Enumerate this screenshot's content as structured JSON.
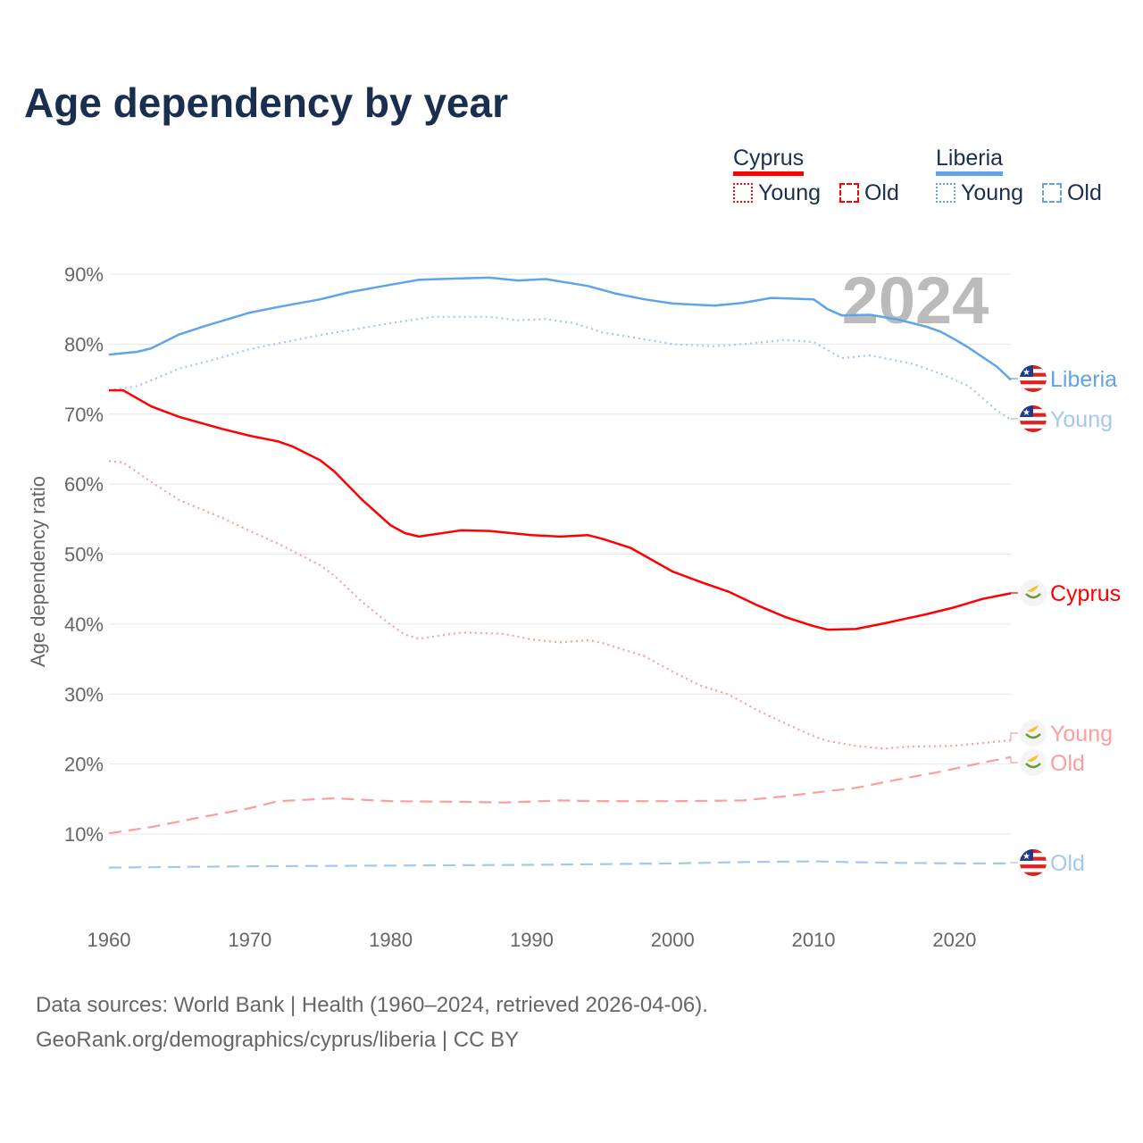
{
  "title": "Age dependency by year",
  "legend": {
    "countries": [
      {
        "name": "Cyprus",
        "color": "#ff0000",
        "items": [
          "Young",
          "Old"
        ]
      },
      {
        "name": "Liberia",
        "color": "#5fa4ea",
        "items": [
          "Young",
          "Old"
        ]
      }
    ]
  },
  "footer": {
    "line1": "Data sources: World Bank | Health (1960–2024, retrieved 2026-04-06).",
    "line2": "GeoRank.org/demographics/cyprus/liberia | CC BY"
  },
  "chart_data": {
    "type": "line",
    "title": "Age dependency by year",
    "xlabel": "",
    "ylabel": "Age dependency ratio",
    "xlim": [
      1960,
      2024
    ],
    "ylim": [
      0,
      95
    ],
    "x_ticks": [
      "1960",
      "1970",
      "1980",
      "1990",
      "2000",
      "2010",
      "2020"
    ],
    "y_ticks": [
      "10%",
      "20%",
      "30%",
      "40%",
      "50%",
      "60%",
      "70%",
      "80%",
      "90%"
    ],
    "y_tick_values": [
      10,
      20,
      30,
      40,
      50,
      60,
      70,
      80,
      90
    ],
    "grid": true,
    "year_watermark": "2024",
    "series": [
      {
        "name": "Liberia",
        "label": "Liberia",
        "country": "Liberia",
        "style": "solid",
        "color": "#5fa4ea",
        "points": [
          [
            1960,
            78.5
          ],
          [
            1962,
            78.9
          ],
          [
            1963,
            79.4
          ],
          [
            1965,
            81.4
          ],
          [
            1967,
            82.7
          ],
          [
            1970,
            84.5
          ],
          [
            1972,
            85.3
          ],
          [
            1975,
            86.4
          ],
          [
            1977,
            87.4
          ],
          [
            1980,
            88.5
          ],
          [
            1982,
            89.2
          ],
          [
            1985,
            89.4
          ],
          [
            1987,
            89.5
          ],
          [
            1989,
            89.1
          ],
          [
            1991,
            89.3
          ],
          [
            1994,
            88.3
          ],
          [
            1996,
            87.2
          ],
          [
            1998,
            86.4
          ],
          [
            2000,
            85.8
          ],
          [
            2003,
            85.5
          ],
          [
            2005,
            85.9
          ],
          [
            2007,
            86.6
          ],
          [
            2010,
            86.4
          ],
          [
            2011,
            85.0
          ],
          [
            2012,
            84.1
          ],
          [
            2014,
            84.2
          ],
          [
            2016,
            83.5
          ],
          [
            2018,
            82.5
          ],
          [
            2019,
            81.8
          ],
          [
            2020,
            80.7
          ],
          [
            2021,
            79.5
          ],
          [
            2023,
            76.8
          ],
          [
            2024,
            74.9
          ]
        ]
      },
      {
        "name": "Liberia Young",
        "label": "Young",
        "country": "Liberia",
        "style": "dotted",
        "color": "#a3c8f0",
        "points": [
          [
            1960,
            73.4
          ],
          [
            1962,
            74.0
          ],
          [
            1965,
            76.5
          ],
          [
            1968,
            78.1
          ],
          [
            1970,
            79.3
          ],
          [
            1975,
            81.3
          ],
          [
            1980,
            83.0
          ],
          [
            1983,
            83.9
          ],
          [
            1987,
            83.9
          ],
          [
            1989,
            83.4
          ],
          [
            1991,
            83.6
          ],
          [
            1993,
            83.0
          ],
          [
            1995,
            81.7
          ],
          [
            1998,
            80.7
          ],
          [
            2000,
            80.0
          ],
          [
            2003,
            79.7
          ],
          [
            2005,
            80.0
          ],
          [
            2008,
            80.6
          ],
          [
            2010,
            80.3
          ],
          [
            2012,
            78.0
          ],
          [
            2014,
            78.4
          ],
          [
            2017,
            77.2
          ],
          [
            2019,
            75.8
          ],
          [
            2021,
            74.0
          ],
          [
            2023,
            70.5
          ],
          [
            2024,
            69.2
          ]
        ]
      },
      {
        "name": "Liberia Old",
        "label": "Old",
        "country": "Liberia",
        "style": "dashed",
        "color": "#a3c8f0",
        "points": [
          [
            1960,
            5.2
          ],
          [
            1970,
            5.4
          ],
          [
            1980,
            5.5
          ],
          [
            1990,
            5.6
          ],
          [
            2000,
            5.8
          ],
          [
            2005,
            6.0
          ],
          [
            2010,
            6.1
          ],
          [
            2015,
            5.9
          ],
          [
            2020,
            5.8
          ],
          [
            2024,
            5.8
          ]
        ]
      },
      {
        "name": "Cyprus",
        "label": "Cyprus",
        "country": "Cyprus",
        "style": "solid",
        "color": "#ff0000",
        "points": [
          [
            1960,
            73.4
          ],
          [
            1961,
            73.4
          ],
          [
            1963,
            71.1
          ],
          [
            1965,
            69.6
          ],
          [
            1968,
            67.9
          ],
          [
            1970,
            66.9
          ],
          [
            1972,
            66.1
          ],
          [
            1973,
            65.4
          ],
          [
            1975,
            63.4
          ],
          [
            1976,
            61.8
          ],
          [
            1978,
            57.7
          ],
          [
            1980,
            54.1
          ],
          [
            1981,
            53.0
          ],
          [
            1982,
            52.5
          ],
          [
            1985,
            53.4
          ],
          [
            1987,
            53.3
          ],
          [
            1990,
            52.7
          ],
          [
            1992,
            52.5
          ],
          [
            1994,
            52.7
          ],
          [
            1995,
            52.2
          ],
          [
            1997,
            50.9
          ],
          [
            2000,
            47.5
          ],
          [
            2002,
            46.0
          ],
          [
            2004,
            44.6
          ],
          [
            2006,
            42.7
          ],
          [
            2008,
            41.0
          ],
          [
            2010,
            39.7
          ],
          [
            2011,
            39.2
          ],
          [
            2013,
            39.3
          ],
          [
            2015,
            40.1
          ],
          [
            2018,
            41.4
          ],
          [
            2020,
            42.4
          ],
          [
            2022,
            43.6
          ],
          [
            2024,
            44.4
          ]
        ]
      },
      {
        "name": "Cyprus Young",
        "label": "Young",
        "country": "Cyprus",
        "style": "dotted",
        "color": "#ff9c9c",
        "points": [
          [
            1960,
            63.3
          ],
          [
            1961,
            63.1
          ],
          [
            1963,
            60.3
          ],
          [
            1965,
            57.7
          ],
          [
            1968,
            55.2
          ],
          [
            1970,
            53.3
          ],
          [
            1972,
            51.5
          ],
          [
            1975,
            48.4
          ],
          [
            1976,
            46.9
          ],
          [
            1978,
            43.1
          ],
          [
            1980,
            39.9
          ],
          [
            1981,
            38.5
          ],
          [
            1982,
            37.9
          ],
          [
            1985,
            38.8
          ],
          [
            1988,
            38.6
          ],
          [
            1990,
            37.8
          ],
          [
            1992,
            37.4
          ],
          [
            1994,
            37.7
          ],
          [
            1995,
            37.3
          ],
          [
            1998,
            35.4
          ],
          [
            2000,
            33.2
          ],
          [
            2002,
            31.2
          ],
          [
            2004,
            29.9
          ],
          [
            2006,
            27.7
          ],
          [
            2008,
            25.8
          ],
          [
            2010,
            24.0
          ],
          [
            2011,
            23.3
          ],
          [
            2013,
            22.6
          ],
          [
            2015,
            22.2
          ],
          [
            2017,
            22.5
          ],
          [
            2020,
            22.6
          ],
          [
            2022,
            23.0
          ],
          [
            2024,
            23.4
          ]
        ]
      },
      {
        "name": "Cyprus Old",
        "label": "Old",
        "country": "Cyprus",
        "style": "dashed",
        "color": "#ff9c9c",
        "points": [
          [
            1960,
            10.1
          ],
          [
            1963,
            11.0
          ],
          [
            1966,
            12.2
          ],
          [
            1970,
            13.7
          ],
          [
            1972,
            14.7
          ],
          [
            1976,
            15.1
          ],
          [
            1980,
            14.7
          ],
          [
            1985,
            14.6
          ],
          [
            1988,
            14.5
          ],
          [
            1992,
            14.8
          ],
          [
            1995,
            14.7
          ],
          [
            2000,
            14.7
          ],
          [
            2005,
            14.8
          ],
          [
            2008,
            15.4
          ],
          [
            2010,
            15.9
          ],
          [
            2013,
            16.6
          ],
          [
            2016,
            17.8
          ],
          [
            2019,
            18.9
          ],
          [
            2022,
            20.2
          ],
          [
            2024,
            21.0
          ]
        ]
      }
    ]
  }
}
